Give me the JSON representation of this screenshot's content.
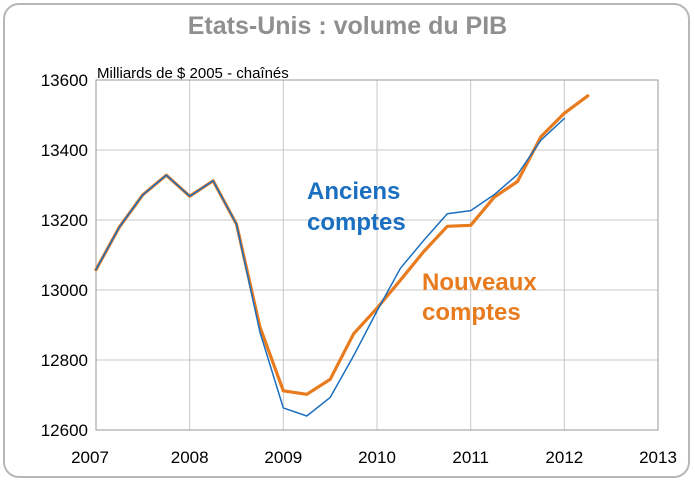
{
  "chart_data": {
    "type": "line",
    "title": "Etats-Unis : volume du PIB",
    "unit_label": "Milliards de  $ 2005 - chaînés",
    "x_ticks": [
      "2007",
      "2008",
      "2009",
      "2010",
      "2011",
      "2012",
      "2013"
    ],
    "y_ticks": [
      "12600",
      "12800",
      "13000",
      "13200",
      "13400",
      "13600"
    ],
    "xlim": [
      2007,
      2013
    ],
    "ylim": [
      12600,
      13600
    ],
    "grid": true,
    "series": [
      {
        "name": "Anciens comptes",
        "name_lines": [
          "Anciens",
          "comptes"
        ],
        "color": "#1a6fc0",
        "x": [
          2007.0,
          2007.25,
          2007.5,
          2007.75,
          2008.0,
          2008.25,
          2008.5,
          2008.75,
          2009.0,
          2009.25,
          2009.5,
          2009.75,
          2010.0,
          2010.25,
          2010.5,
          2010.75,
          2011.0,
          2011.25,
          2011.5,
          2011.75,
          2012.0
        ],
        "values": [
          13058,
          13180,
          13272,
          13328,
          13268,
          13312,
          13188,
          12880,
          12663,
          12640,
          12693,
          12812,
          12940,
          13062,
          13142,
          13218,
          13227,
          13272,
          13330,
          13428,
          13490
        ]
      },
      {
        "name": "Nouveaux comptes",
        "name_lines": [
          "Nouveaux",
          "comptes"
        ],
        "color": "#e87b1e",
        "x": [
          2007.0,
          2007.25,
          2007.5,
          2007.75,
          2008.0,
          2008.25,
          2008.5,
          2008.75,
          2009.0,
          2009.25,
          2009.5,
          2009.75,
          2010.0,
          2010.25,
          2010.5,
          2010.75,
          2011.0,
          2011.25,
          2011.5,
          2011.75,
          2012.0,
          2012.25
        ],
        "values": [
          13058,
          13180,
          13272,
          13328,
          13268,
          13312,
          13188,
          12895,
          12712,
          12702,
          12745,
          12875,
          12948,
          13028,
          13110,
          13182,
          13185,
          13265,
          13310,
          13438,
          13505,
          13555
        ]
      }
    ]
  }
}
